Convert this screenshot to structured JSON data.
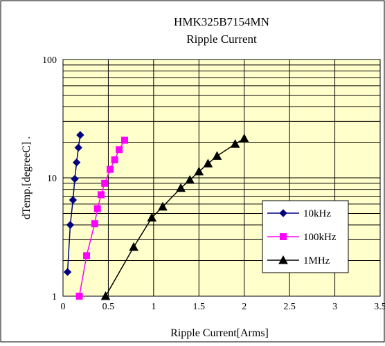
{
  "chart_data": {
    "type": "line",
    "title": "HMK325B7154MN",
    "subtitle": "Ripple Current",
    "xlabel": "Ripple Current[Arms]",
    "ylabel": "dTemp.[degreeC] .",
    "xlim": [
      0,
      3.5
    ],
    "ylim": [
      1,
      100
    ],
    "yscale": "log",
    "xticks": [
      "0",
      "0.5",
      "1",
      "1.5",
      "2",
      "2.5",
      "3",
      "3.5"
    ],
    "xtick_values": [
      0,
      0.5,
      1,
      1.5,
      2,
      2.5,
      3,
      3.5
    ],
    "yticks": [
      "1",
      "10",
      "100"
    ],
    "ytick_values": [
      1,
      10,
      100
    ],
    "grid": true,
    "legend_position": "bottom-right",
    "plot_background": "#ffffcc",
    "series": [
      {
        "name": "10kHz",
        "color": "#000080",
        "marker": "diamond",
        "x": [
          0.05,
          0.08,
          0.11,
          0.13,
          0.15,
          0.17,
          0.19
        ],
        "y": [
          1.6,
          4.0,
          6.5,
          9.8,
          13.5,
          18.0,
          23.0
        ]
      },
      {
        "name": "100kHz",
        "color": "#ff00ff",
        "marker": "square",
        "x": [
          0.18,
          0.26,
          0.35,
          0.38,
          0.42,
          0.46,
          0.52,
          0.57,
          0.62,
          0.68
        ],
        "y": [
          1.0,
          2.2,
          4.1,
          5.5,
          7.2,
          9.0,
          11.8,
          14.2,
          17.3,
          20.8
        ]
      },
      {
        "name": "1MHz",
        "color": "#000000",
        "marker": "triangle",
        "x": [
          0.47,
          0.78,
          0.98,
          1.1,
          1.3,
          1.4,
          1.5,
          1.6,
          1.7,
          1.9,
          2.0
        ],
        "y": [
          1.0,
          2.6,
          4.6,
          5.7,
          8.2,
          9.6,
          11.3,
          13.2,
          15.3,
          19.3,
          21.5
        ]
      }
    ]
  }
}
